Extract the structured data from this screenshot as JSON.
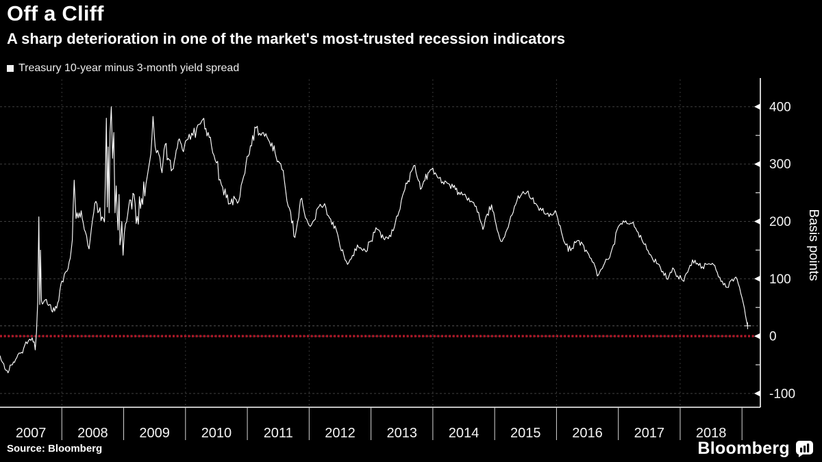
{
  "header": {
    "title": "Off a Cliff",
    "subtitle": "A sharp deterioration in one of the market's most-trusted recession indicators"
  },
  "legend": {
    "label": "Treasury 10-year minus 3-month yield spread",
    "marker_color": "#f2f2f2"
  },
  "footer": {
    "source": "Source: Bloomberg",
    "brand": "Bloomberg"
  },
  "chart_data": {
    "type": "line",
    "title": "Treasury 10-year minus 3-month yield spread",
    "xlabel": "",
    "ylabel": "Basis points",
    "x_domain": [
      2007,
      2019.3
    ],
    "ylim": [
      -124,
      450
    ],
    "y_ticks": [
      400,
      300,
      200,
      100,
      0,
      -100
    ],
    "y_minor_ticks": [
      350,
      250,
      150,
      50,
      -50
    ],
    "x_tick_years": [
      2008,
      2009,
      2010,
      2011,
      2012,
      2013,
      2014,
      2015,
      2016,
      2017,
      2018,
      2019
    ],
    "x_labels": [
      "2007",
      "2008",
      "2009",
      "2010",
      "2011",
      "2012",
      "2013",
      "2014",
      "2015",
      "2016",
      "2017",
      "2018"
    ],
    "grid_years": [
      2008,
      2010,
      2012,
      2014,
      2016,
      2018
    ],
    "grid_on": true,
    "legend_position": "top-left",
    "zero_line_value": 0,
    "zero_line_color": "#b01828",
    "grid_color": "#414141",
    "axis_color": "#ffffff",
    "last_value": 18,
    "series": [
      {
        "name": "Treasury 10-year minus 3-month yield spread",
        "color": "#ffffff",
        "points": [
          [
            2007.0,
            -34
          ],
          [
            2007.06,
            -48
          ],
          [
            2007.13,
            -64
          ],
          [
            2007.2,
            -50
          ],
          [
            2007.27,
            -38
          ],
          [
            2007.33,
            -30
          ],
          [
            2007.4,
            -16
          ],
          [
            2007.46,
            -8
          ],
          [
            2007.52,
            -3
          ],
          [
            2007.57,
            -24
          ],
          [
            2007.61,
            60
          ],
          [
            2007.628,
            208
          ],
          [
            2007.643,
            55
          ],
          [
            2007.655,
            150
          ],
          [
            2007.67,
            62
          ],
          [
            2007.7,
            58
          ],
          [
            2007.75,
            64
          ],
          [
            2007.8,
            55
          ],
          [
            2007.85,
            42
          ],
          [
            2007.9,
            52
          ],
          [
            2007.95,
            62
          ],
          [
            2008.0,
            96
          ],
          [
            2008.06,
            112
          ],
          [
            2008.12,
            130
          ],
          [
            2008.17,
            168
          ],
          [
            2008.2,
            272
          ],
          [
            2008.23,
            205
          ],
          [
            2008.28,
            215
          ],
          [
            2008.33,
            205
          ],
          [
            2008.38,
            182
          ],
          [
            2008.44,
            152
          ],
          [
            2008.5,
            205
          ],
          [
            2008.55,
            235
          ],
          [
            2008.6,
            218
          ],
          [
            2008.65,
            208
          ],
          [
            2008.69,
            199
          ],
          [
            2008.72,
            380
          ],
          [
            2008.735,
            225
          ],
          [
            2008.75,
            330
          ],
          [
            2008.765,
            215
          ],
          [
            2008.78,
            355
          ],
          [
            2008.8,
            400
          ],
          [
            2008.82,
            310
          ],
          [
            2008.84,
            355
          ],
          [
            2008.86,
            215
          ],
          [
            2008.88,
            262
          ],
          [
            2008.91,
            185
          ],
          [
            2008.925,
            247
          ],
          [
            2008.94,
            159
          ],
          [
            2008.97,
            200
          ],
          [
            2008.99,
            141
          ],
          [
            2009.03,
            196
          ],
          [
            2009.08,
            225
          ],
          [
            2009.15,
            249
          ],
          [
            2009.22,
            209
          ],
          [
            2009.29,
            240
          ],
          [
            2009.36,
            265
          ],
          [
            2009.44,
            318
          ],
          [
            2009.475,
            383
          ],
          [
            2009.51,
            330
          ],
          [
            2009.55,
            324
          ],
          [
            2009.62,
            285
          ],
          [
            2009.67,
            334
          ],
          [
            2009.72,
            310
          ],
          [
            2009.77,
            288
          ],
          [
            2009.82,
            305
          ],
          [
            2009.85,
            324
          ],
          [
            2009.9,
            344
          ],
          [
            2009.95,
            325
          ],
          [
            2010.0,
            340
          ],
          [
            2010.06,
            352
          ],
          [
            2010.12,
            350
          ],
          [
            2010.18,
            362
          ],
          [
            2010.24,
            370
          ],
          [
            2010.28,
            378
          ],
          [
            2010.33,
            362
          ],
          [
            2010.42,
            332
          ],
          [
            2010.5,
            302
          ],
          [
            2010.58,
            264
          ],
          [
            2010.66,
            241
          ],
          [
            2010.73,
            231
          ],
          [
            2010.8,
            240
          ],
          [
            2010.86,
            235
          ],
          [
            2010.92,
            270
          ],
          [
            2010.98,
            302
          ],
          [
            2011.05,
            332
          ],
          [
            2011.14,
            363
          ],
          [
            2011.22,
            350
          ],
          [
            2011.3,
            353
          ],
          [
            2011.38,
            331
          ],
          [
            2011.45,
            319
          ],
          [
            2011.52,
            302
          ],
          [
            2011.58,
            289
          ],
          [
            2011.64,
            236
          ],
          [
            2011.7,
            216
          ],
          [
            2011.77,
            172
          ],
          [
            2011.83,
            207
          ],
          [
            2011.86,
            238
          ],
          [
            2011.92,
            216
          ],
          [
            2012.0,
            193
          ],
          [
            2012.08,
            202
          ],
          [
            2012.16,
            226
          ],
          [
            2012.25,
            231
          ],
          [
            2012.33,
            206
          ],
          [
            2012.42,
            192
          ],
          [
            2012.5,
            156
          ],
          [
            2012.58,
            133
          ],
          [
            2012.62,
            125
          ],
          [
            2012.7,
            141
          ],
          [
            2012.78,
            159
          ],
          [
            2012.85,
            151
          ],
          [
            2012.92,
            147
          ],
          [
            2013.0,
            166
          ],
          [
            2013.08,
            189
          ],
          [
            2013.15,
            181
          ],
          [
            2013.22,
            168
          ],
          [
            2013.3,
            176
          ],
          [
            2013.38,
            191
          ],
          [
            2013.45,
            216
          ],
          [
            2013.53,
            251
          ],
          [
            2013.6,
            271
          ],
          [
            2013.69,
            297
          ],
          [
            2013.75,
            276
          ],
          [
            2013.8,
            256
          ],
          [
            2013.87,
            271
          ],
          [
            2013.94,
            286
          ],
          [
            2014.0,
            293
          ],
          [
            2014.08,
            276
          ],
          [
            2014.16,
            269
          ],
          [
            2014.25,
            266
          ],
          [
            2014.33,
            259
          ],
          [
            2014.42,
            251
          ],
          [
            2014.5,
            247
          ],
          [
            2014.58,
            241
          ],
          [
            2014.66,
            233
          ],
          [
            2014.74,
            216
          ],
          [
            2014.81,
            186
          ],
          [
            2014.88,
            213
          ],
          [
            2014.95,
            229
          ],
          [
            2015.02,
            196
          ],
          [
            2015.08,
            171
          ],
          [
            2015.12,
            165
          ],
          [
            2015.2,
            186
          ],
          [
            2015.28,
            211
          ],
          [
            2015.36,
            236
          ],
          [
            2015.44,
            248
          ],
          [
            2015.52,
            251
          ],
          [
            2015.6,
            239
          ],
          [
            2015.68,
            229
          ],
          [
            2015.76,
            219
          ],
          [
            2015.84,
            213
          ],
          [
            2015.92,
            211
          ],
          [
            2016.0,
            213
          ],
          [
            2016.08,
            181
          ],
          [
            2016.15,
            159
          ],
          [
            2016.23,
            149
          ],
          [
            2016.33,
            166
          ],
          [
            2016.42,
            161
          ],
          [
            2016.5,
            146
          ],
          [
            2016.58,
            129
          ],
          [
            2016.64,
            116
          ],
          [
            2016.68,
            107
          ],
          [
            2016.76,
            123
          ],
          [
            2016.84,
            134
          ],
          [
            2016.92,
            159
          ],
          [
            2017.0,
            191
          ],
          [
            2017.08,
            201
          ],
          [
            2017.16,
            196
          ],
          [
            2017.24,
            199
          ],
          [
            2017.32,
            181
          ],
          [
            2017.4,
            163
          ],
          [
            2017.48,
            149
          ],
          [
            2017.56,
            133
          ],
          [
            2017.64,
            126
          ],
          [
            2017.72,
            113
          ],
          [
            2017.8,
            99
          ],
          [
            2017.88,
            119
          ],
          [
            2017.96,
            105
          ],
          [
            2018.04,
            97
          ],
          [
            2018.12,
            111
          ],
          [
            2018.2,
            133
          ],
          [
            2018.28,
            127
          ],
          [
            2018.36,
            121
          ],
          [
            2018.44,
            125
          ],
          [
            2018.52,
            127
          ],
          [
            2018.6,
            111
          ],
          [
            2018.68,
            96
          ],
          [
            2018.76,
            85
          ],
          [
            2018.84,
            99
          ],
          [
            2018.9,
            103
          ],
          [
            2018.96,
            85
          ],
          [
            2019.0,
            67
          ],
          [
            2019.04,
            48
          ],
          [
            2019.07,
            28
          ],
          [
            2019.09,
            18
          ]
        ]
      }
    ]
  }
}
